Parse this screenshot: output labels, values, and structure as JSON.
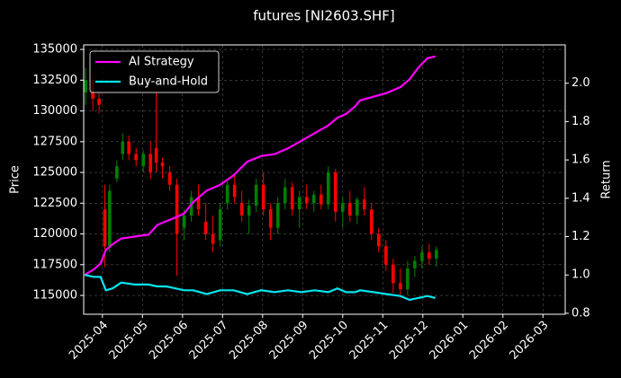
{
  "chart_data": {
    "type": "candlestick",
    "title": "futures [NI2603.SHF]",
    "ylabel": "Price",
    "y2label": "Return",
    "background": "#000000",
    "grid": true,
    "legend_loc": "upper left",
    "up_color": "#008000",
    "down_color": "#ff0000",
    "xlim": [
      2025.211,
      2026.213
    ],
    "xticks": [
      {
        "value": 2025.25,
        "label": "2025-04"
      },
      {
        "value": 2025.3333,
        "label": "2025-05"
      },
      {
        "value": 2025.4167,
        "label": "2025-06"
      },
      {
        "value": 2025.5,
        "label": "2025-07"
      },
      {
        "value": 2025.5833,
        "label": "2025-08"
      },
      {
        "value": 2025.6667,
        "label": "2025-09"
      },
      {
        "value": 2025.75,
        "label": "2025-10"
      },
      {
        "value": 2025.8333,
        "label": "2025-11"
      },
      {
        "value": 2025.9167,
        "label": "2025-12"
      },
      {
        "value": 2026.0,
        "label": "2026-01"
      },
      {
        "value": 2026.0833,
        "label": "2026-02"
      },
      {
        "value": 2026.1667,
        "label": "2026-03"
      }
    ],
    "ylim": [
      113470,
      135370
    ],
    "yticks": [
      115000,
      117500,
      120000,
      122500,
      125000,
      127500,
      130000,
      132500,
      135000
    ],
    "y2lim": [
      0.795,
      2.2
    ],
    "y2ticks": [
      0.8,
      {
        "value": 1,
        "label": "1.0"
      },
      1.2,
      1.4,
      1.6,
      1.8,
      {
        "value": 2,
        "label": "2.0"
      }
    ],
    "x": [
      2025.215,
      2025.23,
      2025.243,
      2025.255,
      2025.265,
      2025.28,
      2025.292,
      2025.305,
      2025.32,
      2025.335,
      2025.35,
      2025.362,
      2025.375,
      2025.39,
      2025.405,
      2025.42,
      2025.435,
      2025.45,
      2025.465,
      2025.48,
      2025.495,
      2025.51,
      2025.525,
      2025.54,
      2025.555,
      2025.57,
      2025.585,
      2025.6,
      2025.615,
      2025.63,
      2025.645,
      2025.66,
      2025.675,
      2025.69,
      2025.705,
      2025.72,
      2025.735,
      2025.75,
      2025.765,
      2025.78,
      2025.795,
      2025.81,
      2025.825,
      2025.84,
      2025.855,
      2025.87,
      2025.885,
      2025.9,
      2025.915,
      2025.93,
      2025.945
    ],
    "open": [
      131500,
      132500,
      131000,
      122000,
      119000,
      124500,
      126500,
      127500,
      126500,
      125500,
      126500,
      127000,
      125800,
      125000,
      124000,
      120500,
      121500,
      123000,
      121000,
      120000,
      119500,
      122500,
      124000,
      122500,
      121500,
      122300,
      124000,
      122000,
      120500,
      122500,
      123800,
      122000,
      123000,
      122500,
      123200,
      122400,
      125000,
      121800,
      122500,
      121500,
      122800,
      122000,
      120000,
      119000,
      117500,
      116000,
      115500,
      117200,
      117800,
      118500,
      118000
    ],
    "high": [
      133500,
      133000,
      131500,
      124000,
      124000,
      126000,
      128200,
      128000,
      127000,
      126800,
      127500,
      131500,
      126200,
      125500,
      124500,
      122000,
      123500,
      124000,
      122500,
      121500,
      122500,
      124500,
      124800,
      123500,
      122800,
      124500,
      125000,
      122500,
      123000,
      124500,
      124200,
      123500,
      124000,
      123500,
      124000,
      125500,
      125300,
      123000,
      123500,
      123000,
      123800,
      122500,
      120500,
      119500,
      118000,
      117200,
      117800,
      118200,
      119000,
      119200,
      119000
    ],
    "low": [
      130500,
      130000,
      129800,
      117300,
      118500,
      124200,
      126000,
      126000,
      125500,
      125000,
      124500,
      125000,
      124500,
      123500,
      116600,
      119500,
      121000,
      121500,
      119500,
      118500,
      119000,
      122000,
      122500,
      121000,
      120000,
      121800,
      121500,
      119500,
      120000,
      122000,
      121500,
      120500,
      122000,
      121800,
      122000,
      122000,
      121000,
      120500,
      121000,
      120800,
      121500,
      119500,
      118500,
      117000,
      115200,
      114800,
      115000,
      116500,
      117200,
      117500,
      117300
    ],
    "close": [
      132500,
      131000,
      130500,
      119000,
      123500,
      125500,
      127500,
      126500,
      126000,
      126500,
      125000,
      125800,
      125500,
      124000,
      120000,
      121500,
      123000,
      122000,
      120000,
      119200,
      122000,
      124000,
      123000,
      121500,
      122300,
      124000,
      122000,
      120500,
      122500,
      123800,
      122000,
      123000,
      122500,
      123200,
      122400,
      125000,
      121800,
      122500,
      121500,
      122800,
      122000,
      120000,
      119000,
      117500,
      116000,
      115500,
      117200,
      117800,
      118500,
      118000,
      118700
    ],
    "series": [
      {
        "name": "AI Strategy",
        "color": "#ff00ff",
        "axis": "y2",
        "x": [
          2025.213,
          2025.233,
          2025.246,
          2025.257,
          2025.271,
          2025.289,
          2025.317,
          2025.346,
          2025.364,
          2025.383,
          2025.402,
          2025.42,
          2025.439,
          2025.467,
          2025.495,
          2025.523,
          2025.551,
          2025.58,
          2025.608,
          2025.636,
          2025.664,
          2025.692,
          2025.72,
          2025.739,
          2025.757,
          2025.776,
          2025.786,
          2025.814,
          2025.842,
          2025.87,
          2025.889,
          2025.907,
          2025.926,
          2025.943
        ],
        "values": [
          1.0,
          1.03,
          1.06,
          1.13,
          1.16,
          1.19,
          1.2,
          1.21,
          1.26,
          1.28,
          1.3,
          1.32,
          1.38,
          1.44,
          1.47,
          1.52,
          1.59,
          1.62,
          1.63,
          1.66,
          1.7,
          1.74,
          1.78,
          1.82,
          1.84,
          1.88,
          1.91,
          1.93,
          1.95,
          1.98,
          2.02,
          2.08,
          2.13,
          2.14
        ]
      },
      {
        "name": "Buy-and-Hold",
        "color": "#00e5ee",
        "axis": "y2",
        "x": [
          2025.213,
          2025.233,
          2025.246,
          2025.257,
          2025.271,
          2025.289,
          2025.317,
          2025.346,
          2025.364,
          2025.383,
          2025.402,
          2025.42,
          2025.439,
          2025.467,
          2025.495,
          2025.523,
          2025.551,
          2025.58,
          2025.608,
          2025.636,
          2025.664,
          2025.692,
          2025.72,
          2025.739,
          2025.757,
          2025.776,
          2025.786,
          2025.814,
          2025.842,
          2025.87,
          2025.889,
          2025.907,
          2025.926,
          2025.943
        ],
        "values": [
          1.0,
          0.99,
          0.99,
          0.92,
          0.93,
          0.96,
          0.95,
          0.95,
          0.94,
          0.94,
          0.93,
          0.92,
          0.92,
          0.9,
          0.92,
          0.92,
          0.9,
          0.92,
          0.91,
          0.92,
          0.91,
          0.92,
          0.91,
          0.93,
          0.91,
          0.91,
          0.92,
          0.91,
          0.9,
          0.89,
          0.87,
          0.88,
          0.89,
          0.88
        ]
      }
    ]
  }
}
